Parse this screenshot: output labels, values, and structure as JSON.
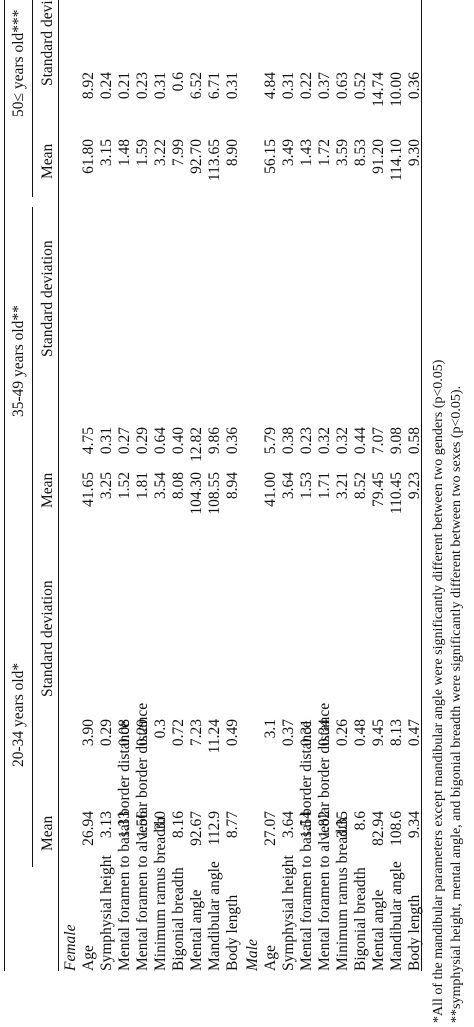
{
  "groups": [
    "20-34 years old*",
    "35-49 years old**",
    "50≤ years old***"
  ],
  "subheaders": [
    "Mean",
    "Standard deviation",
    "Mean",
    "Standard deviation",
    "Mean",
    "Standard deviation"
  ],
  "female": {
    "label": "Female",
    "rows": [
      {
        "name": "Age",
        "v": [
          "26.94",
          "3.90",
          "41.65",
          "4.75",
          "61.80",
          "8.92"
        ]
      },
      {
        "name": "Symphysial height",
        "v": [
          "3.13",
          "0.29",
          "3.25",
          "0.31",
          "3.15",
          "0.24"
        ]
      },
      {
        "name": "Mental foramen to basal border distance",
        "v": [
          "1.33",
          "0.08",
          "1.52",
          "0.27",
          "1.48",
          "0.21"
        ]
      },
      {
        "name": "Mental foramen to alveolar border distance",
        "v": [
          "1.56",
          "0.29",
          "1.81",
          "0.29",
          "1.59",
          "0.23"
        ]
      },
      {
        "name": "Minimum ramus breadth",
        "v": [
          "3.0",
          "0.3",
          "3.54",
          "0.64",
          "3.22",
          "0.31"
        ]
      },
      {
        "name": "Bigonial breadth",
        "v": [
          "8.16",
          "0.72",
          "8.08",
          "0.40",
          "7.99",
          "0.6"
        ]
      },
      {
        "name": "Mental angle",
        "v": [
          "92.67",
          "7.23",
          "104.30",
          "12.82",
          "92.70",
          "6.52"
        ]
      },
      {
        "name": "Mandibular angle",
        "v": [
          "112.9",
          "11.24",
          "108.55",
          "9.86",
          "113.65",
          "6.71"
        ]
      },
      {
        "name": "Body length",
        "v": [
          "8.77",
          "0.49",
          "8.94",
          "0.36",
          "8.90",
          "0.31"
        ]
      }
    ]
  },
  "male": {
    "label": "Male",
    "rows": [
      {
        "name": "Age",
        "v": [
          "27.07",
          "3.1",
          "41.00",
          "5.79",
          "56.15",
          "4.84"
        ]
      },
      {
        "name": "Symphysial height",
        "v": [
          "3.64",
          "0.37",
          "3.64",
          "0.38",
          "3.49",
          "0.31"
        ]
      },
      {
        "name": "Mental foramen to basal border distance",
        "v": [
          "1.54",
          "0.31",
          "1.53",
          "0.23",
          "1.43",
          "0.22"
        ]
      },
      {
        "name": "Mental foramen to alveolar border distance",
        "v": [
          "1.82",
          "0.34",
          "1.71",
          "0.32",
          "1.72",
          "0.37"
        ]
      },
      {
        "name": "Minimum ramus breadth",
        "v": [
          "3.35",
          "0.26",
          "3.21",
          "0.32",
          "3.59",
          "0.63"
        ]
      },
      {
        "name": "Bigonial breadth",
        "v": [
          "8.6",
          "0.48",
          "8.52",
          "0.44",
          "8.53",
          "0.52"
        ]
      },
      {
        "name": "Mental angle",
        "v": [
          "82.94",
          "9.45",
          "79.45",
          "7.07",
          "91.20",
          "14.74"
        ]
      },
      {
        "name": "Mandibular angle",
        "v": [
          "108.6",
          "8.13",
          "110.45",
          "9.08",
          "114.10",
          "10.00"
        ]
      },
      {
        "name": "Body length",
        "v": [
          "9.34",
          "0.47",
          "9.23",
          "0.58",
          "9.30",
          "0.36"
        ]
      }
    ]
  },
  "footnotes": [
    "*All of the mandibular parameters except mandibular angle were significantly different between two genders (p<0.05)",
    "**symphysial height, mental angle, and bigonial breadth were significantly different between two sexes (p<0.05)."
  ]
}
